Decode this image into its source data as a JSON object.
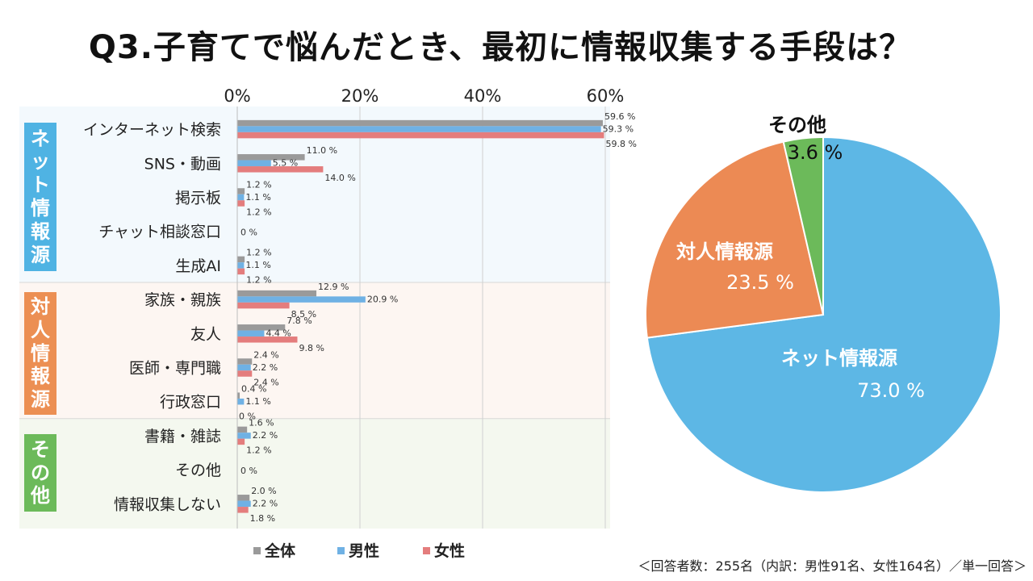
{
  "title": "Q3.子育てで悩んだとき、最初に情報収集する手段は？",
  "footnote": "＜回答者数：255名（内訳：男性91名、女性164名）／単一回答＞",
  "colors": {
    "all": "#9a9a9a",
    "male": "#6fb1e4",
    "female": "#e47d7d",
    "net_tag": "#4fb3e3",
    "person_tag": "#ec8f53",
    "other_tag": "#6cba5a",
    "net_bg": "#f3f9fd",
    "person_bg": "#fdf6f2",
    "other_bg": "#f4f8ef",
    "pie_net": "#5db7e5",
    "pie_person": "#ec8a54",
    "pie_other": "#6cba5a"
  },
  "chart_data": [
    {
      "type": "bar",
      "orientation": "horizontal",
      "xaxis_ticks": [
        "0%",
        "20%",
        "40%",
        "60%"
      ],
      "xlim": [
        0,
        60
      ],
      "legend": {
        "position": "bottom",
        "entries": [
          "全体",
          "男性",
          "女性"
        ]
      },
      "series": [
        {
          "name": "全体",
          "color_key": "all",
          "values": [
            59.6,
            11.0,
            1.2,
            0,
            1.2,
            12.9,
            7.8,
            2.4,
            0.4,
            1.6,
            0,
            2.0
          ],
          "labels": [
            "59.6 %",
            "11.0 %",
            "1.2 %",
            "0 %",
            "1.2 %",
            "12.9 %",
            "7.8 %",
            "2.4 %",
            "0.4 %",
            "1.6 %",
            "0 %",
            "2.0 %"
          ]
        },
        {
          "name": "男性",
          "color_key": "male",
          "values": [
            59.3,
            5.5,
            1.1,
            0,
            1.1,
            20.9,
            4.4,
            2.2,
            1.1,
            2.2,
            0,
            2.2
          ],
          "labels": [
            "59.3 %",
            "5.5 %",
            "1.1 %",
            "",
            "1.1 %",
            "20.9 %",
            "4.4 %",
            "2.2 %",
            "1.1 %",
            "2.2 %",
            "",
            "2.2 %"
          ]
        },
        {
          "name": "女性",
          "color_key": "female",
          "values": [
            59.8,
            14.0,
            1.2,
            0,
            1.2,
            8.5,
            9.8,
            2.4,
            0,
            1.2,
            0,
            1.8
          ],
          "labels": [
            "59.8 %",
            "14.0 %",
            "1.2 %",
            "",
            "1.2 %",
            "8.5 %",
            "9.8 %",
            "2.4 %",
            "0 %",
            "1.2 %",
            "",
            "1.8 %"
          ]
        }
      ],
      "categories": [
        "インターネット検索",
        "SNS・動画",
        "掲示板",
        "チャット相談窓口",
        "生成AI",
        "家族・親族",
        "友人",
        "医師・専門職",
        "行政窓口",
        "書籍・雑誌",
        "その他",
        "情報収集しない"
      ],
      "groups": [
        {
          "name": "ネット情報源",
          "chars": [
            "ネ",
            "ッ",
            "ト",
            "情",
            "報",
            "源"
          ],
          "start": 0,
          "count": 5,
          "color_key": "net_tag",
          "bg_key": "net_bg"
        },
        {
          "name": "対人情報源",
          "chars": [
            "対",
            "人",
            "情",
            "報",
            "源"
          ],
          "start": 5,
          "count": 4,
          "color_key": "person_tag",
          "bg_key": "person_bg"
        },
        {
          "name": "その他",
          "chars": [
            "そ",
            "の",
            "他"
          ],
          "start": 9,
          "count": 3,
          "color_key": "other_tag",
          "bg_key": "other_bg"
        }
      ]
    },
    {
      "type": "pie",
      "slices": [
        {
          "name": "ネット情報源",
          "value": 73.0,
          "label": "73.0 %",
          "color_key": "pie_net"
        },
        {
          "name": "対人情報源",
          "value": 23.5,
          "label": "23.5 %",
          "color_key": "pie_person"
        },
        {
          "name": "その他",
          "value": 3.6,
          "label": "3.6 %",
          "color_key": "pie_other"
        }
      ]
    }
  ]
}
